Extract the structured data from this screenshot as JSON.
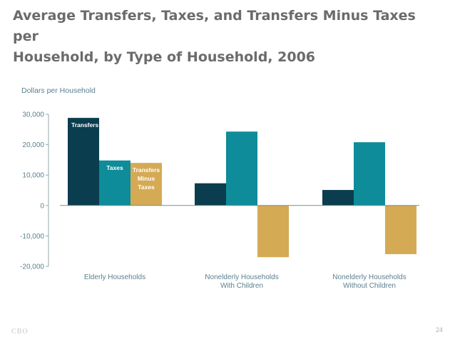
{
  "slide": {
    "title_line1": "Average Transfers, Taxes, and Transfers Minus Taxes per",
    "title_line2": "Household, by Type of Household, 2006",
    "footer_logo": "CBO",
    "page_number": "24"
  },
  "chart_data": {
    "type": "bar",
    "title": "Average Transfers, Taxes, and Transfers Minus Taxes per Household, by Type of Household, 2006",
    "ylabel": "Dollars per Household",
    "xlabel": "",
    "ylim": [
      -20000,
      30000
    ],
    "yticks": [
      30000,
      20000,
      10000,
      0,
      -10000,
      -20000
    ],
    "ytick_labels": [
      "30,000",
      "20,000",
      "10,000",
      "0",
      "-10,000",
      "-20,000"
    ],
    "grid": false,
    "legend": "inline labels on first group",
    "categories": [
      [
        "Elderly Households"
      ],
      [
        "Nonelderly Households",
        "With Children"
      ],
      [
        "Nonelderly Households",
        "Without Children"
      ]
    ],
    "series": [
      {
        "name": "Transfers",
        "label_lines": [
          "Transfers"
        ],
        "color": "#0a3d4e",
        "label_color": "#ffffff",
        "values": [
          28800,
          7300,
          5100
        ]
      },
      {
        "name": "Taxes",
        "label_lines": [
          "Taxes"
        ],
        "color": "#0e8c99",
        "label_color": "#ffffff",
        "values": [
          14800,
          24300,
          20800
        ]
      },
      {
        "name": "Transfers Minus Taxes",
        "label_lines": [
          "Transfers",
          "Minus",
          "Taxes"
        ],
        "color": "#d4aa55",
        "label_color": "#ffffff",
        "values": [
          14000,
          -17000,
          -16000
        ]
      }
    ]
  }
}
